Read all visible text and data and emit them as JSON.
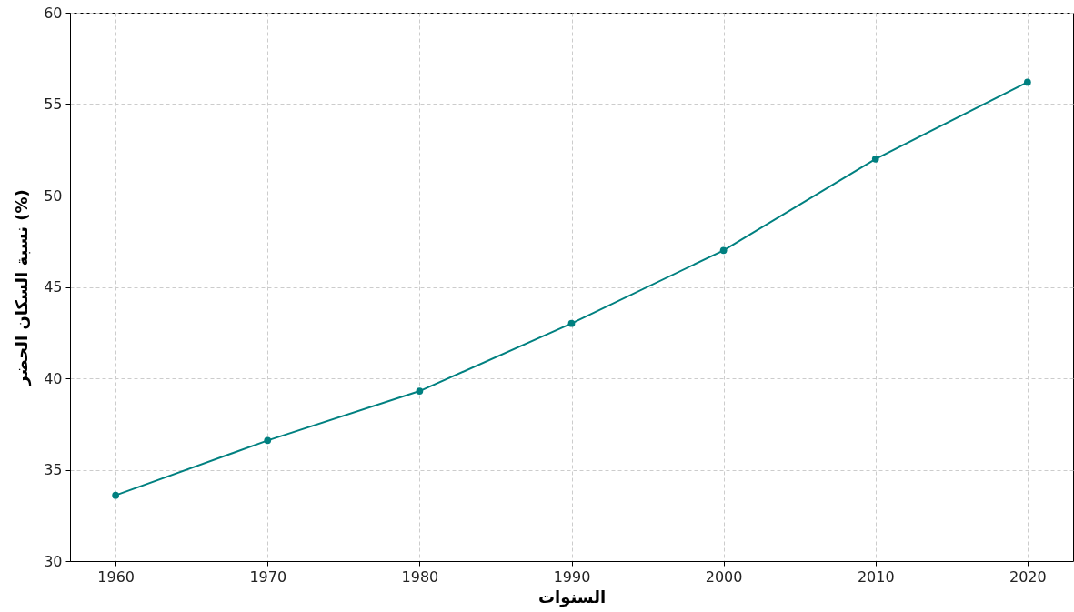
{
  "chart_data": {
    "type": "line",
    "xlabel": "السنوات",
    "ylabel": "نسبة السكان الحضر (%)",
    "x": [
      1960,
      1970,
      1980,
      1990,
      2000,
      2010,
      2020
    ],
    "series": [
      {
        "color": "#008080",
        "values": [
          33.6,
          36.6,
          39.3,
          43.0,
          47.0,
          52.0,
          56.2
        ]
      }
    ],
    "xlim": [
      1957,
      2023
    ],
    "xticks": [
      1960,
      1970,
      1980,
      1990,
      2000,
      2010,
      2020
    ],
    "ylim": [
      30,
      60
    ],
    "yticks": [
      30,
      35,
      40,
      45,
      50,
      55,
      60
    ],
    "grid": true,
    "marker": "circle",
    "line_style": "solid"
  }
}
